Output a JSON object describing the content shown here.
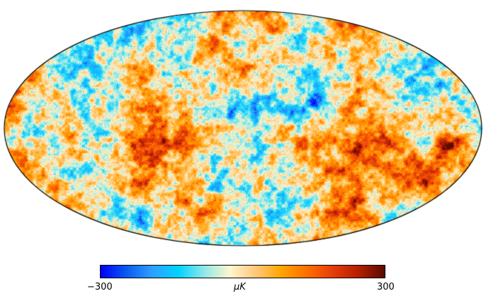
{
  "colorbar": {
    "min_label": "−300",
    "max_label": "300",
    "unit_label": "μK",
    "min_value": -300,
    "max_value": 300,
    "colors": [
      "#0000ff",
      "#0a5af0",
      "#2ea0ff",
      "#00d2ff",
      "#8ee8e8",
      "#fff6d0",
      "#ffc87a",
      "#ffa500",
      "#ff6e00",
      "#e63c0a",
      "#b41e00",
      "#5a0a00"
    ]
  },
  "map": {
    "projection": "mollweide",
    "outline_color": "#000000"
  }
}
